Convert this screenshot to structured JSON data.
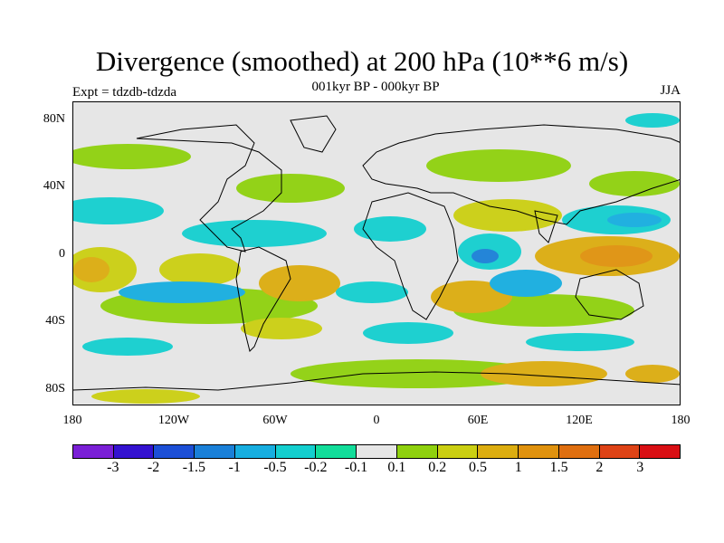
{
  "title": "Divergence (smoothed) at 200 hPa (10**6 m/s)",
  "subtitle": "001kyr BP - 000kyr BP",
  "experiment": "Expt = tdzdb-tdzda",
  "season": "JJA",
  "lat_labels": [
    "80N",
    "40N",
    "0",
    "40S",
    "80S"
  ],
  "lon_labels": [
    "180",
    "120W",
    "60W",
    "0",
    "60E",
    "120E",
    "180"
  ],
  "colorbar": {
    "colors": [
      "#7a1fd6",
      "#3412d0",
      "#1c4fd6",
      "#1a80d8",
      "#17aee0",
      "#14cfcf",
      "#12dd9a",
      "#e6e6e6",
      "#8fd10e",
      "#cbcf12",
      "#dcad10",
      "#e0920e",
      "#df6f10",
      "#de4316",
      "#d90f14"
    ],
    "labels": [
      "-3",
      "-2",
      "-1.5",
      "-1",
      "-0.5",
      "-0.2",
      "-0.1",
      "0.1",
      "0.2",
      "0.5",
      "1",
      "1.5",
      "2",
      "3"
    ]
  },
  "fields": {
    "neg_strong": [
      "#1a80d8",
      "#14cfcf"
    ],
    "pos_strong": [
      "#dcad10",
      "#e0920e"
    ]
  }
}
